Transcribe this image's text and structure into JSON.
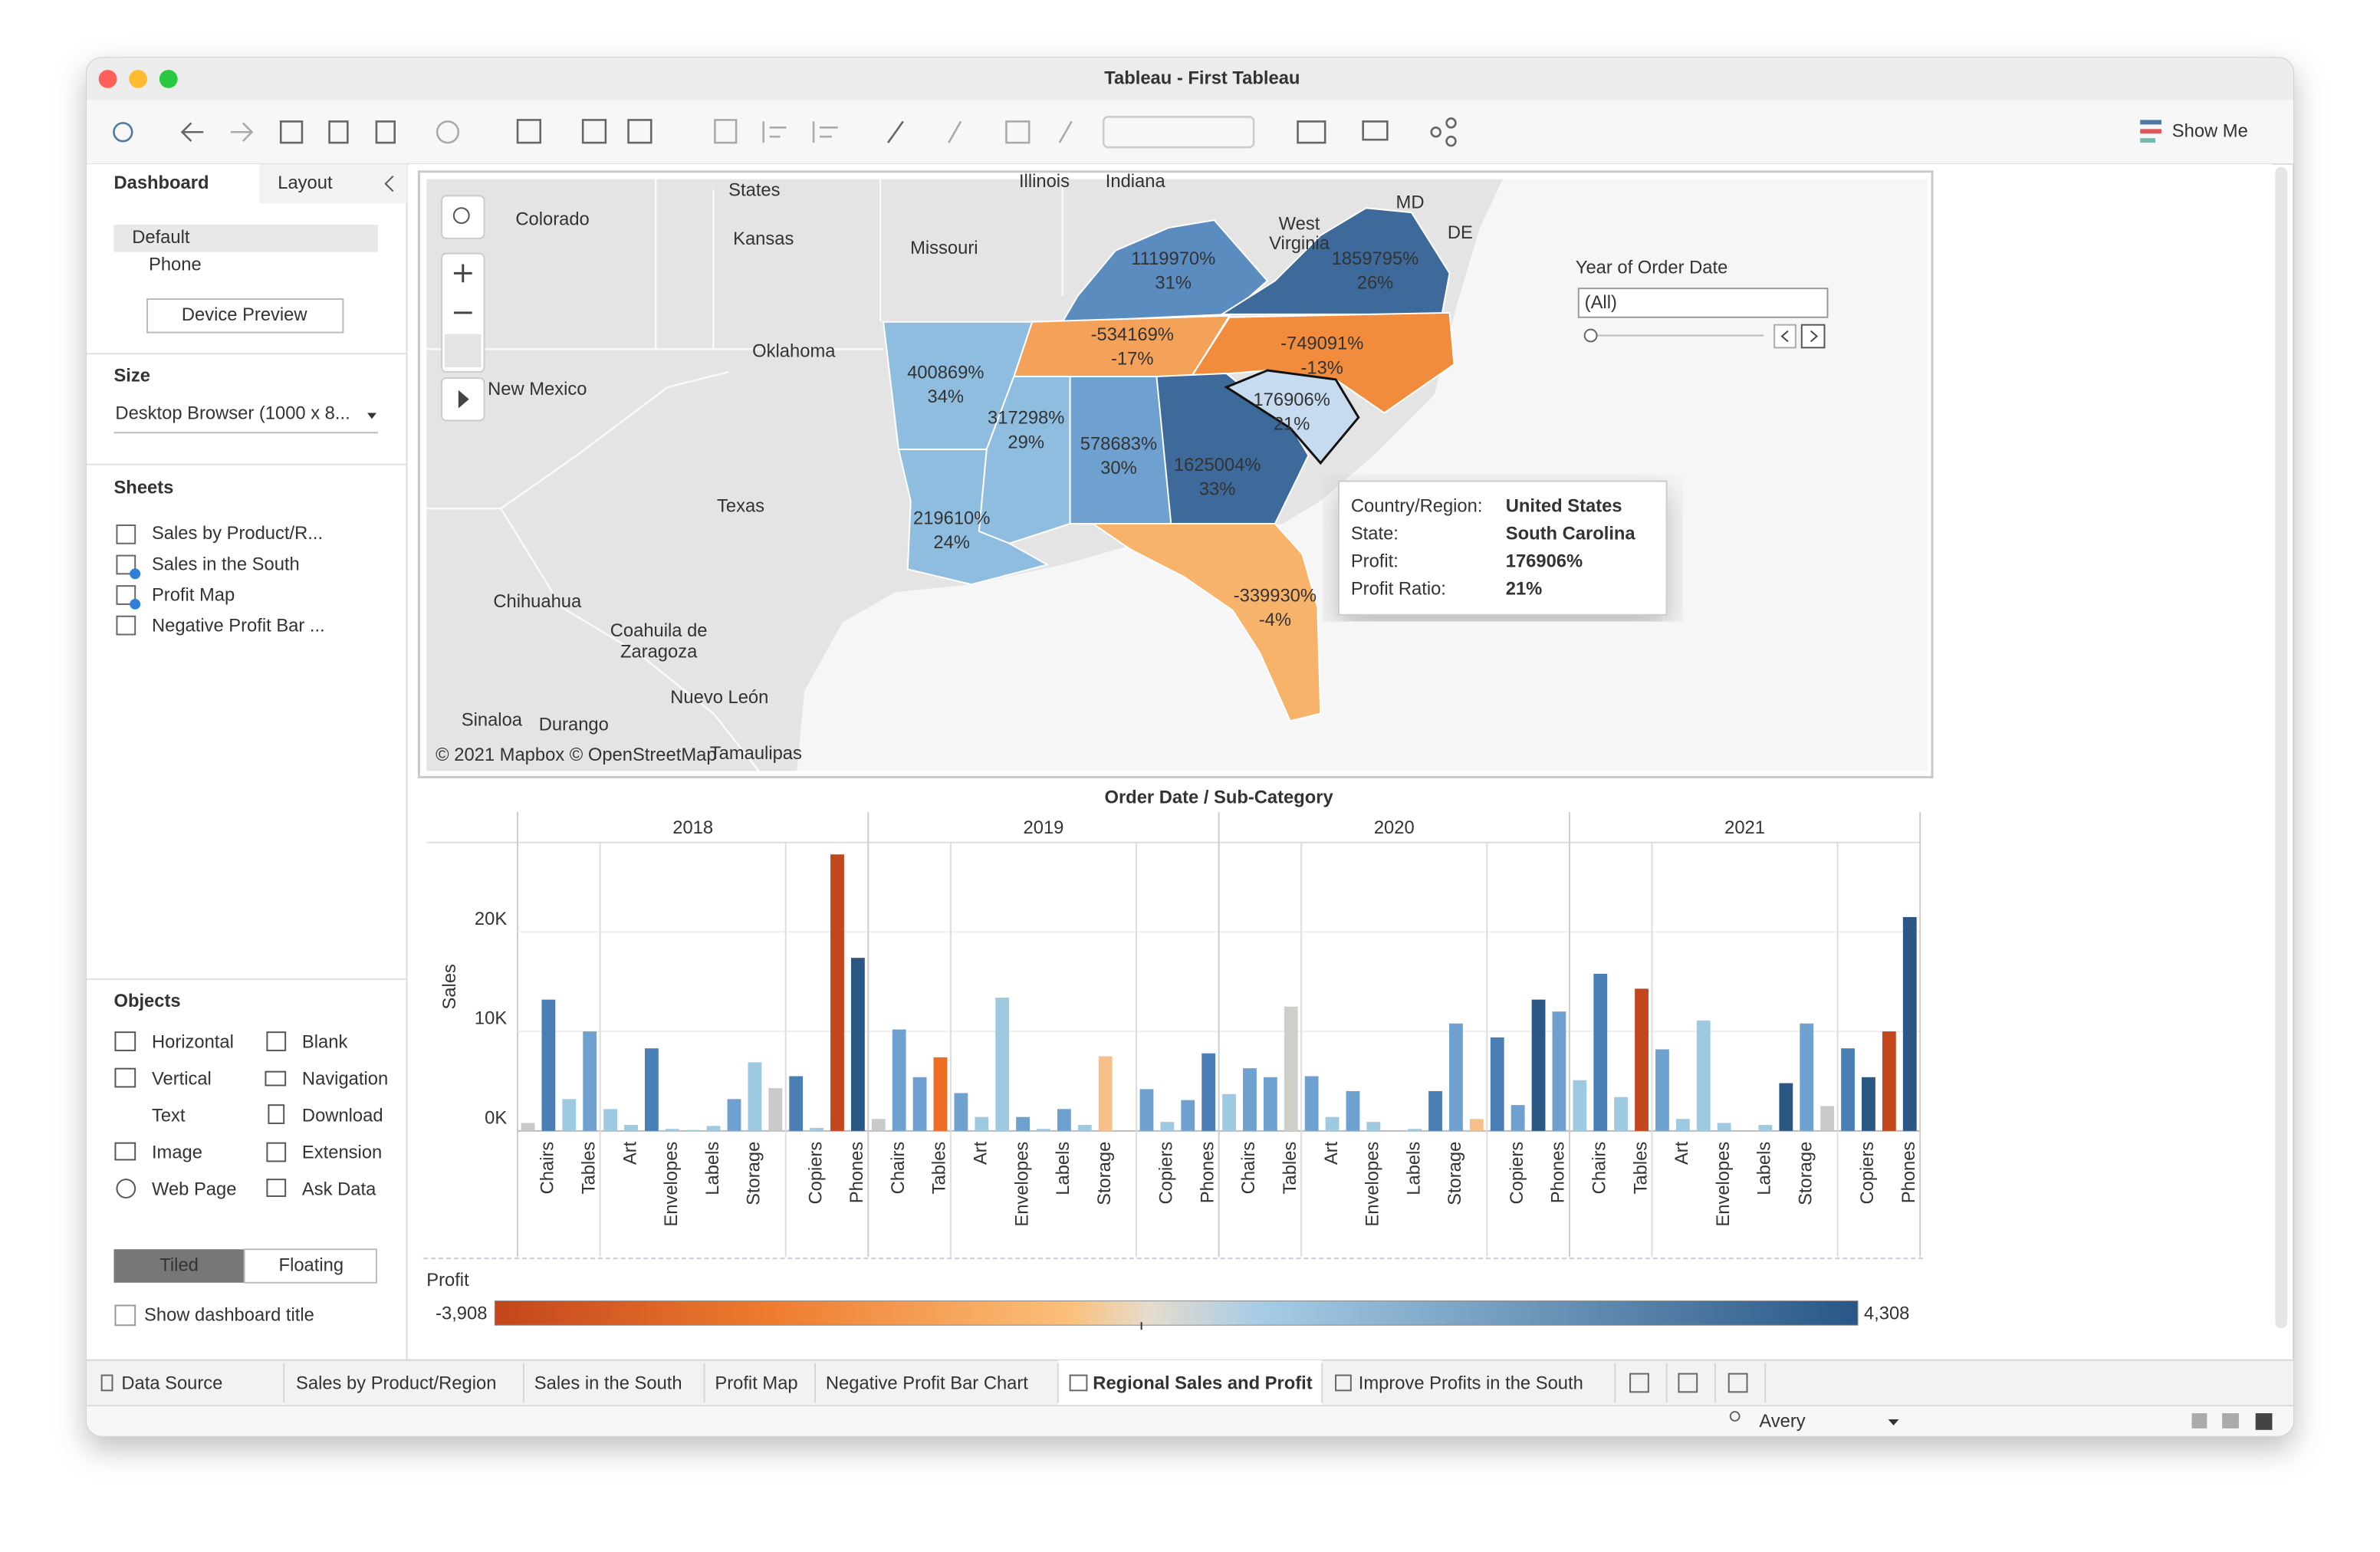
{
  "window_title": "Tableau - First Tableau",
  "toolbar": {
    "show_me": "Show Me"
  },
  "sidebar": {
    "tabs": [
      "Dashboard",
      "Layout"
    ],
    "devices": [
      "Default",
      "Phone"
    ],
    "device_preview": "Device Preview",
    "size_heading": "Size",
    "size_value": "Desktop Browser (1000 x 8...",
    "sheets_heading": "Sheets",
    "sheets": [
      "Sales by Product/R...",
      "Sales in the South",
      "Profit Map",
      "Negative Profit Bar ..."
    ],
    "objects_heading": "Objects",
    "objects": [
      "Horizontal",
      "Blank",
      "Vertical",
      "Navigation",
      "Text",
      "Download",
      "Image",
      "Extension",
      "Web Page",
      "Ask Data"
    ],
    "layout_modes": [
      "Tiled",
      "Floating"
    ],
    "show_title": "Show dashboard title"
  },
  "map": {
    "place_labels": [
      "States",
      "Colorado",
      "Kansas",
      "Missouri",
      "Illinois",
      "Indiana",
      "Oklahoma",
      "New Mexico",
      "Texas",
      "Chihuahua",
      "Coahuila de",
      "Zaragoza",
      "Nuevo León",
      "Sinaloa",
      "Durango",
      "Tamaulipas",
      "West",
      "Virginia",
      "MD",
      "DE"
    ],
    "state_labels": [
      {
        "profit": "1119970%",
        "ratio": "31%"
      },
      {
        "profit": "1859795%",
        "ratio": "26%"
      },
      {
        "profit": "-534169%",
        "ratio": "-17%"
      },
      {
        "profit": "-749091%",
        "ratio": "-13%"
      },
      {
        "profit": "400869%",
        "ratio": "34%"
      },
      {
        "profit": "176906%",
        "ratio": "21%"
      },
      {
        "profit": "317298%",
        "ratio": "29%"
      },
      {
        "profit": "578683%",
        "ratio": "30%"
      },
      {
        "profit": "1625004%",
        "ratio": "33%"
      },
      {
        "profit": "219610%",
        "ratio": "24%"
      },
      {
        "profit": "-339930%",
        "ratio": "-4%"
      }
    ],
    "attribution": "© 2021 Mapbox © OpenStreetMap",
    "filter": {
      "title": "Year of Order Date",
      "value": "(All)"
    },
    "tooltip": [
      [
        "Country/Region:",
        "United States"
      ],
      [
        "State:",
        "South Carolina"
      ],
      [
        "Profit:",
        "176906%"
      ],
      [
        "Profit Ratio:",
        "21%"
      ]
    ]
  },
  "chart_data": {
    "type": "bar",
    "title": "Order Date / Sub-Category",
    "y_label": "Sales",
    "categories": [
      null,
      "Chairs",
      null,
      "Tables",
      null,
      "Art",
      null,
      "Envelopes",
      null,
      "Labels",
      null,
      "Storage",
      null,
      null,
      "Copiers",
      null,
      "Phones"
    ],
    "series": [
      {
        "name": "2018",
        "values": [
          800,
          13200,
          3200,
          10000,
          2200,
          600,
          8300,
          200,
          100,
          500,
          3200,
          6900,
          4300,
          5500,
          300,
          27800,
          17400
        ],
        "colors": [
          "#c9c9c9",
          "#4a7fb5",
          "#9ecae1",
          "#6fa1d0",
          "#9ecae1",
          "#9ecae1",
          "#4a7fb5",
          "#9ecae1",
          "#9ecae1",
          "#9ecae1",
          "#6fa1d0",
          "#9ecae1",
          "#c9c9c9",
          "#4a7fb5",
          "#9ecae1",
          "#c3461c",
          "#2a5783"
        ]
      },
      {
        "name": "2019",
        "values": [
          1200,
          10200,
          5400,
          7400,
          3800,
          1400,
          13400,
          1400,
          200,
          2200,
          600,
          7500,
          0,
          4200,
          900,
          3100,
          7800
        ],
        "colors": [
          "#c9c9c9",
          "#6fa1d0",
          "#6fa1d0",
          "#ed6d24",
          "#6fa1d0",
          "#9ecae1",
          "#9ecae1",
          "#6fa1d0",
          "#9ecae1",
          "#6fa1d0",
          "#9ecae1",
          "#f7c08a",
          "#9ecae1",
          "#6fa1d0",
          "#9ecae1",
          "#6fa1d0",
          "#4a7fb5"
        ]
      },
      {
        "name": "2020",
        "values": [
          3700,
          6300,
          5400,
          12500,
          5500,
          1400,
          4000,
          900,
          0,
          200,
          4000,
          10800,
          1200,
          9400,
          2600,
          13200,
          12000
        ],
        "colors": [
          "#9ecae1",
          "#6fa1d0",
          "#6fa1d0",
          "#cfcfc9",
          "#6fa1d0",
          "#9ecae1",
          "#6fa1d0",
          "#9ecae1",
          "#9ecae1",
          "#9ecae1",
          "#4a7fb5",
          "#6fa1d0",
          "#f7c08a",
          "#4a7fb5",
          "#6fa1d0",
          "#2a5783",
          "#6fa1d0"
        ]
      },
      {
        "name": "2021",
        "values": [
          5100,
          15800,
          3400,
          14300,
          8200,
          1200,
          11100,
          800,
          0,
          600,
          4800,
          10800,
          2500,
          8300,
          5400,
          10000,
          21500
        ],
        "colors": [
          "#9ecae1",
          "#4a7fb5",
          "#9ecae1",
          "#c3461c",
          "#6fa1d0",
          "#9ecae1",
          "#9ecae1",
          "#9ecae1",
          "#9ecae1",
          "#9ecae1",
          "#2a5783",
          "#6fa1d0",
          "#c9c9c9",
          "#4a7fb5",
          "#2a5783",
          "#c3461c",
          "#2a5783"
        ]
      }
    ],
    "ylim": [
      0,
      29000
    ],
    "yticks": [
      {
        "value": 0,
        "label": "0K"
      },
      {
        "value": 10000,
        "label": "10K"
      },
      {
        "value": 20000,
        "label": "20K"
      }
    ],
    "grid": true
  },
  "color_legend": {
    "title": "Profit",
    "min": {
      "value": -3908,
      "label": "-3,908"
    },
    "max": {
      "value": 4308,
      "label": "4,308"
    }
  },
  "tabs": [
    "Data Source",
    "Sales by Product/Region",
    "Sales in the South",
    "Profit Map",
    "Negative Profit Bar Chart",
    "Regional Sales and Profit",
    "Improve Profits in the South"
  ],
  "status": {
    "user": "Avery"
  }
}
